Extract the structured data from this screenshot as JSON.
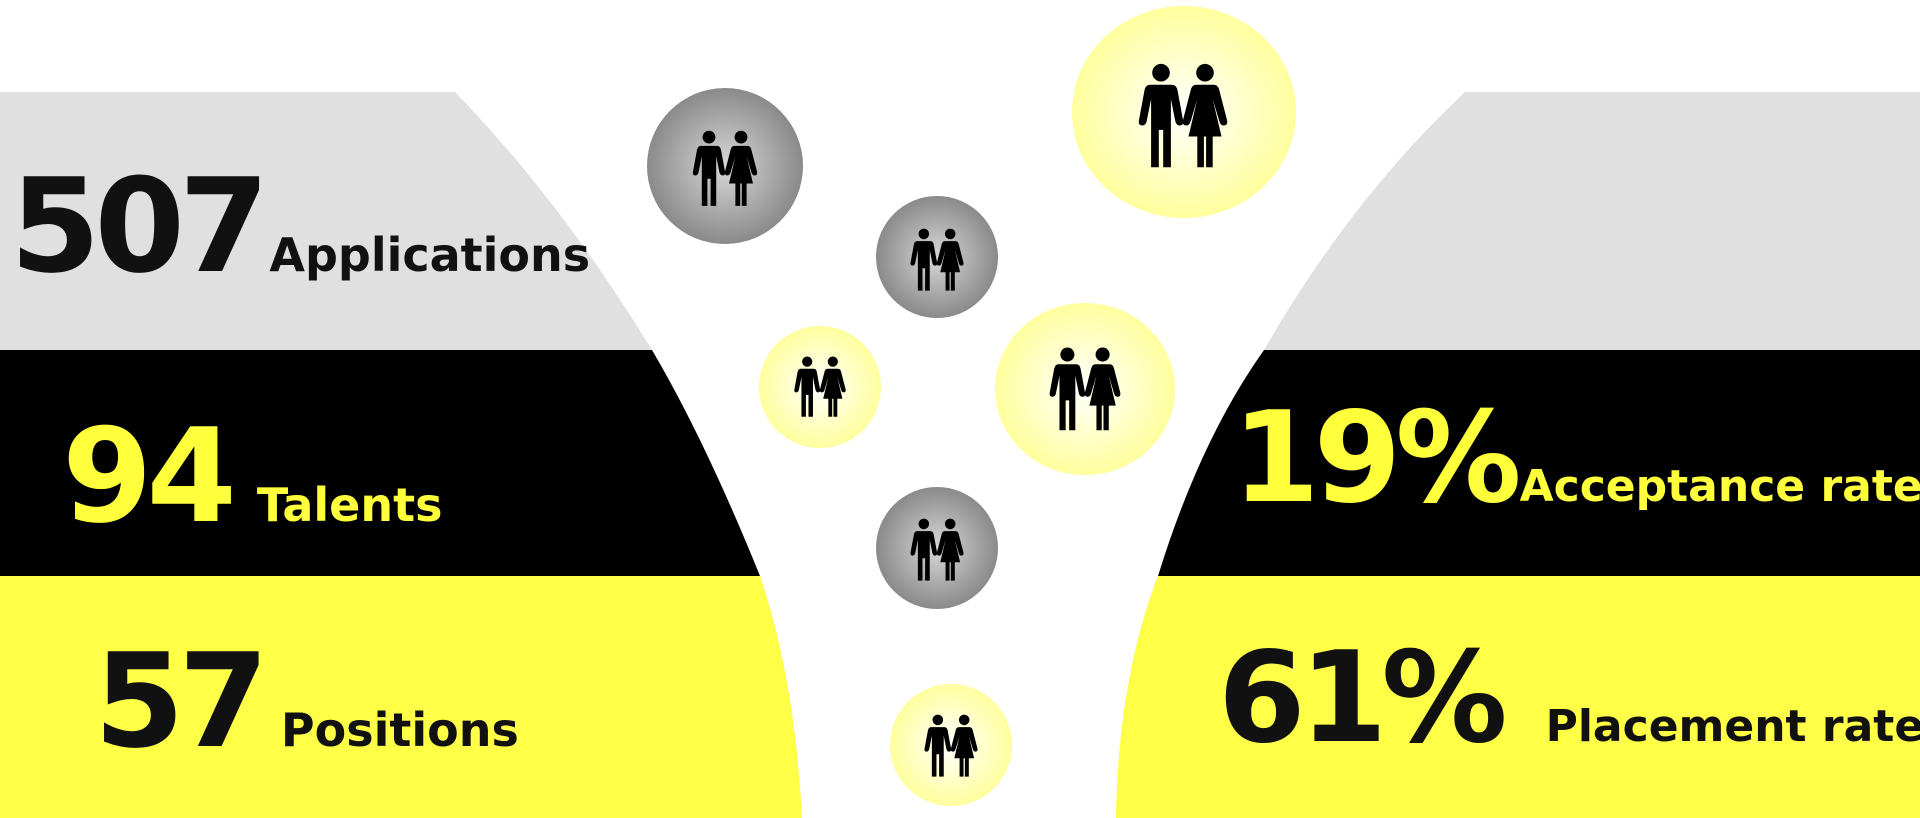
{
  "left_stats": [
    {
      "value": "507",
      "label": "Applications"
    },
    {
      "value": "94",
      "label": "Talents"
    },
    {
      "value": "57",
      "label": "Positions"
    }
  ],
  "right_stats": [
    {
      "value": "19%",
      "label": "Acceptance rate"
    },
    {
      "value": "61%",
      "label": "Placement rate"
    }
  ],
  "colors": {
    "band_gray": "#e0e0e0",
    "band_black": "#000000",
    "band_yellow": "#ffff48",
    "accent_yellow_text": "#ffff3c",
    "bubble_gray": "#8c8c8c",
    "bubble_yellow": "#ffffa8"
  },
  "icons": [
    "couple-icon"
  ]
}
